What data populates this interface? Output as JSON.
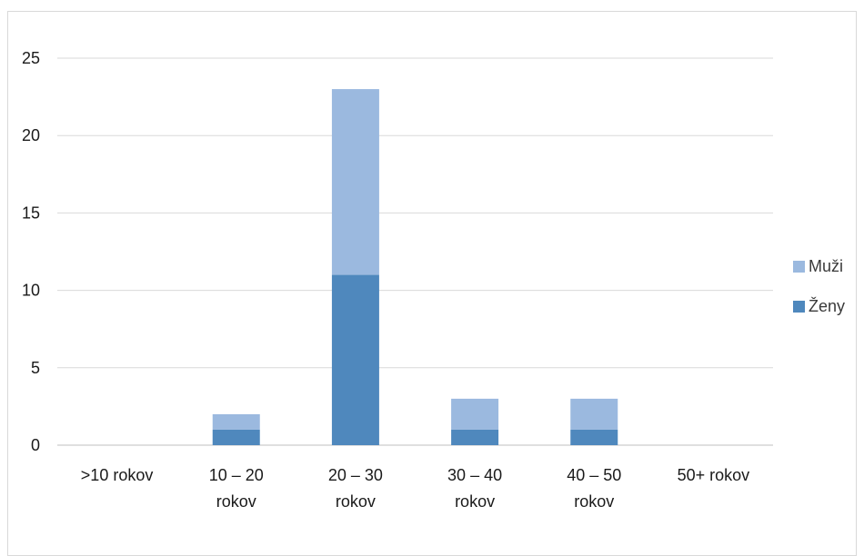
{
  "chart_data": {
    "type": "bar",
    "stacked": true,
    "categories": [
      [
        ">10 rokov"
      ],
      [
        "10 – 20",
        "rokov"
      ],
      [
        "20 – 30",
        "rokov"
      ],
      [
        "30 – 40",
        "rokov"
      ],
      [
        "40 – 50",
        "rokov"
      ],
      [
        "50+ rokov"
      ]
    ],
    "series": [
      {
        "name": "Ženy",
        "color": "#4f88bd",
        "values": [
          0,
          1,
          11,
          1,
          1,
          0
        ]
      },
      {
        "name": "Muži",
        "color": "#9bb9df",
        "values": [
          0,
          1,
          12,
          2,
          2,
          0
        ]
      }
    ],
    "ylim": [
      0,
      25
    ],
    "yticks": [
      0,
      5,
      10,
      15,
      20,
      25
    ],
    "grid": true,
    "legend": {
      "position": "right",
      "order": [
        "Muži",
        "Ženy"
      ]
    },
    "title": "",
    "xlabel": "",
    "ylabel": ""
  }
}
